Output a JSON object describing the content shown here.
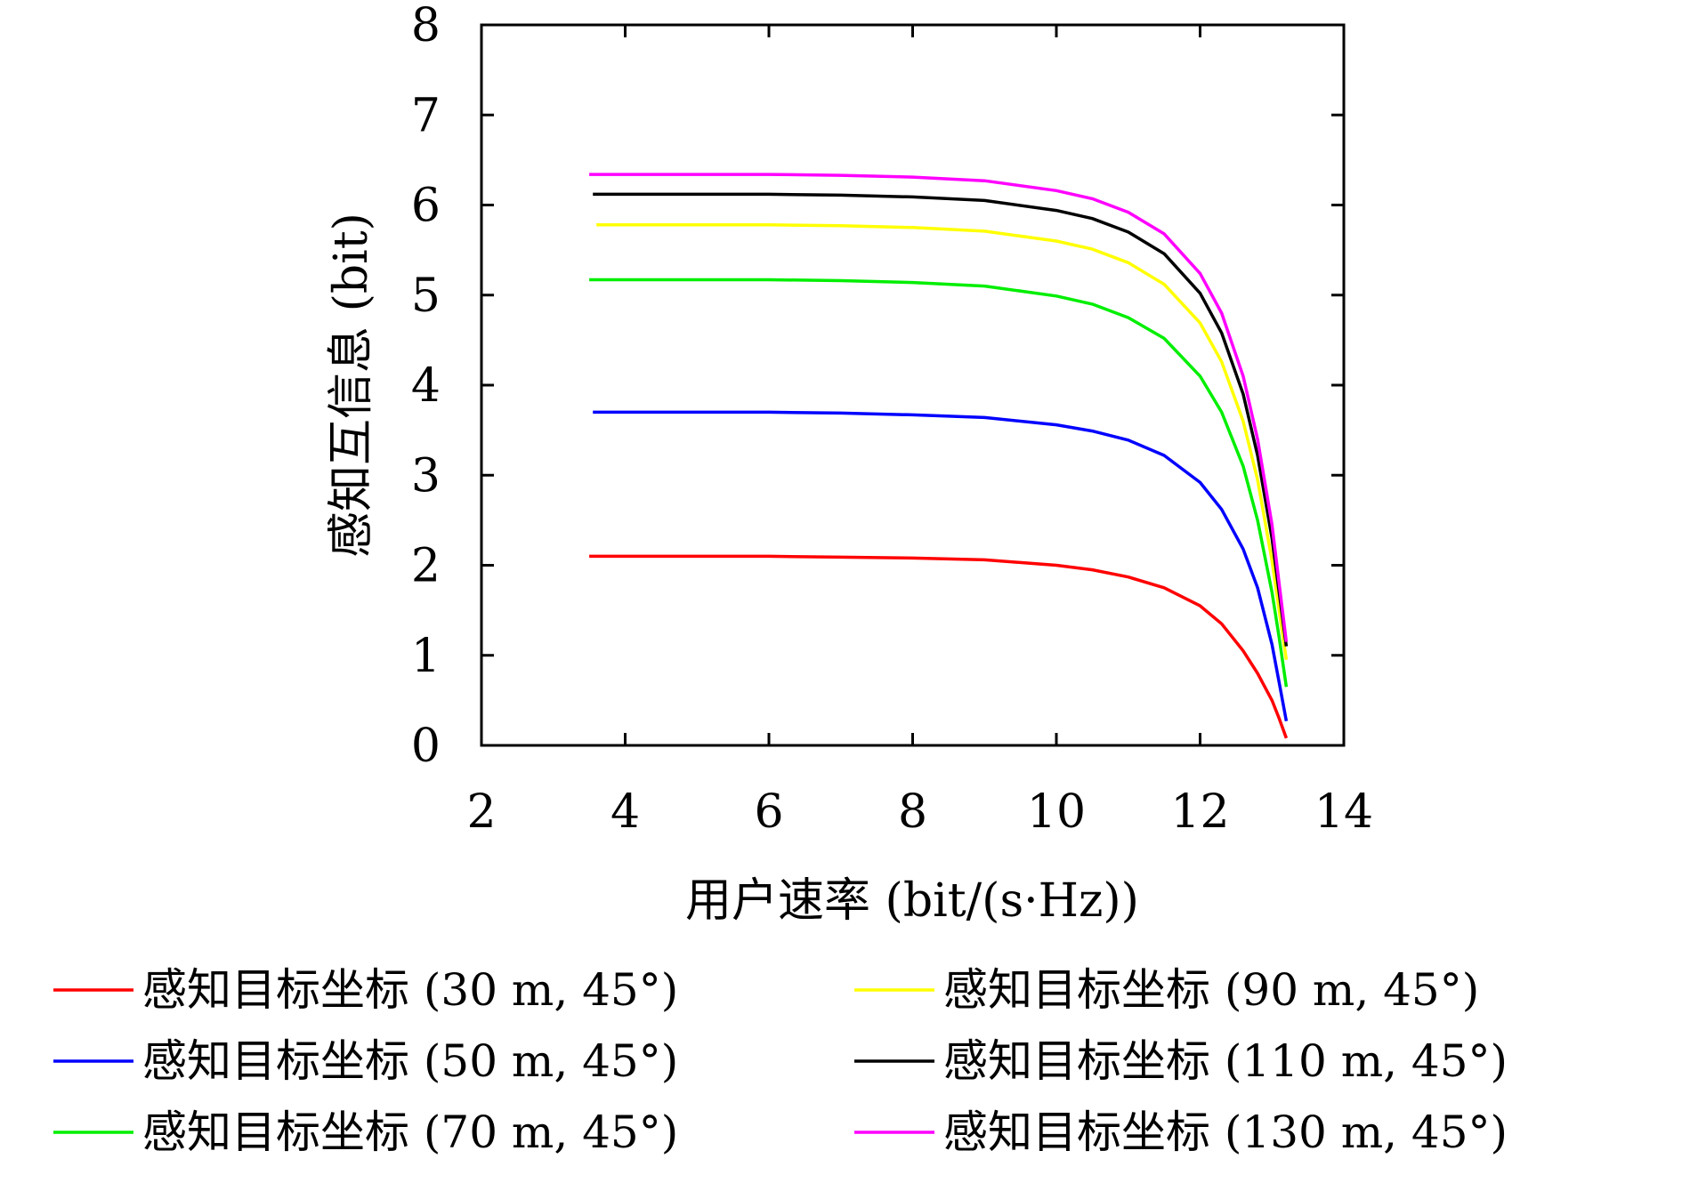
{
  "chart_data": {
    "type": "line",
    "title": "",
    "xlabel": "用户速率 (bit/(s·Hz))",
    "ylabel": "感知互信息 (bit)",
    "xlim": [
      2,
      14
    ],
    "ylim": [
      0,
      8
    ],
    "xticks": [
      2,
      4,
      6,
      8,
      10,
      12,
      14
    ],
    "yticks": [
      0,
      1,
      2,
      3,
      4,
      5,
      6,
      7,
      8
    ],
    "grid": false,
    "legend_position": "bottom, two columns",
    "series": [
      {
        "name": "感知目标坐标 (30 m, 45°)",
        "color": "#ff0000",
        "x": [
          3.5,
          4,
          5,
          6,
          7,
          8,
          9,
          10,
          10.5,
          11,
          11.5,
          12,
          12.3,
          12.6,
          12.8,
          13.0,
          13.1,
          13.2
        ],
        "y": [
          2.1,
          2.1,
          2.1,
          2.1,
          2.09,
          2.08,
          2.06,
          2.0,
          1.95,
          1.87,
          1.75,
          1.55,
          1.35,
          1.05,
          0.8,
          0.5,
          0.3,
          0.08
        ]
      },
      {
        "name": "感知目标坐标 (50 m, 45°)",
        "color": "#0000ff",
        "x": [
          3.55,
          4,
          5,
          6,
          7,
          8,
          9,
          10,
          10.5,
          11,
          11.5,
          12,
          12.3,
          12.6,
          12.8,
          13.0,
          13.1,
          13.2
        ],
        "y": [
          3.7,
          3.7,
          3.7,
          3.7,
          3.69,
          3.67,
          3.64,
          3.56,
          3.49,
          3.39,
          3.22,
          2.92,
          2.62,
          2.18,
          1.75,
          1.12,
          0.7,
          0.27
        ]
      },
      {
        "name": "感知目标坐标 (70 m, 45°)",
        "color": "#00ee00",
        "x": [
          3.5,
          4,
          5,
          6,
          7,
          8,
          9,
          10,
          10.5,
          11,
          11.5,
          12,
          12.3,
          12.6,
          12.8,
          13.0,
          13.1,
          13.2
        ],
        "y": [
          5.17,
          5.17,
          5.17,
          5.17,
          5.16,
          5.14,
          5.1,
          4.99,
          4.9,
          4.75,
          4.52,
          4.1,
          3.7,
          3.1,
          2.5,
          1.7,
          1.2,
          0.65
        ]
      },
      {
        "name": "感知目标坐标 (90 m, 45°)",
        "color": "#ffff00",
        "x": [
          3.6,
          4,
          5,
          6,
          7,
          8,
          9,
          10,
          10.5,
          11,
          11.5,
          12,
          12.3,
          12.6,
          12.8,
          13.0,
          13.1,
          13.2
        ],
        "y": [
          5.78,
          5.78,
          5.78,
          5.78,
          5.77,
          5.75,
          5.71,
          5.6,
          5.51,
          5.36,
          5.12,
          4.69,
          4.26,
          3.6,
          2.95,
          2.05,
          1.5,
          0.95
        ]
      },
      {
        "name": "感知目标坐标 (110 m, 45°)",
        "color": "#000000",
        "x": [
          3.55,
          4,
          5,
          6,
          7,
          8,
          9,
          10,
          10.5,
          11,
          11.5,
          12,
          12.3,
          12.6,
          12.8,
          13.0,
          13.1,
          13.2
        ],
        "y": [
          6.12,
          6.12,
          6.12,
          6.12,
          6.11,
          6.09,
          6.05,
          5.94,
          5.85,
          5.7,
          5.46,
          5.02,
          4.58,
          3.9,
          3.22,
          2.3,
          1.7,
          1.1
        ]
      },
      {
        "name": "感知目标坐标 (130 m, 45°)",
        "color": "#ff00ff",
        "x": [
          3.5,
          4,
          5,
          6,
          7,
          8,
          9,
          10,
          10.5,
          11,
          11.5,
          12,
          12.3,
          12.6,
          12.8,
          13.0,
          13.1,
          13.2
        ],
        "y": [
          6.34,
          6.34,
          6.34,
          6.34,
          6.33,
          6.31,
          6.27,
          6.16,
          6.07,
          5.92,
          5.68,
          5.24,
          4.8,
          4.1,
          3.4,
          2.45,
          1.8,
          1.15
        ]
      }
    ]
  }
}
